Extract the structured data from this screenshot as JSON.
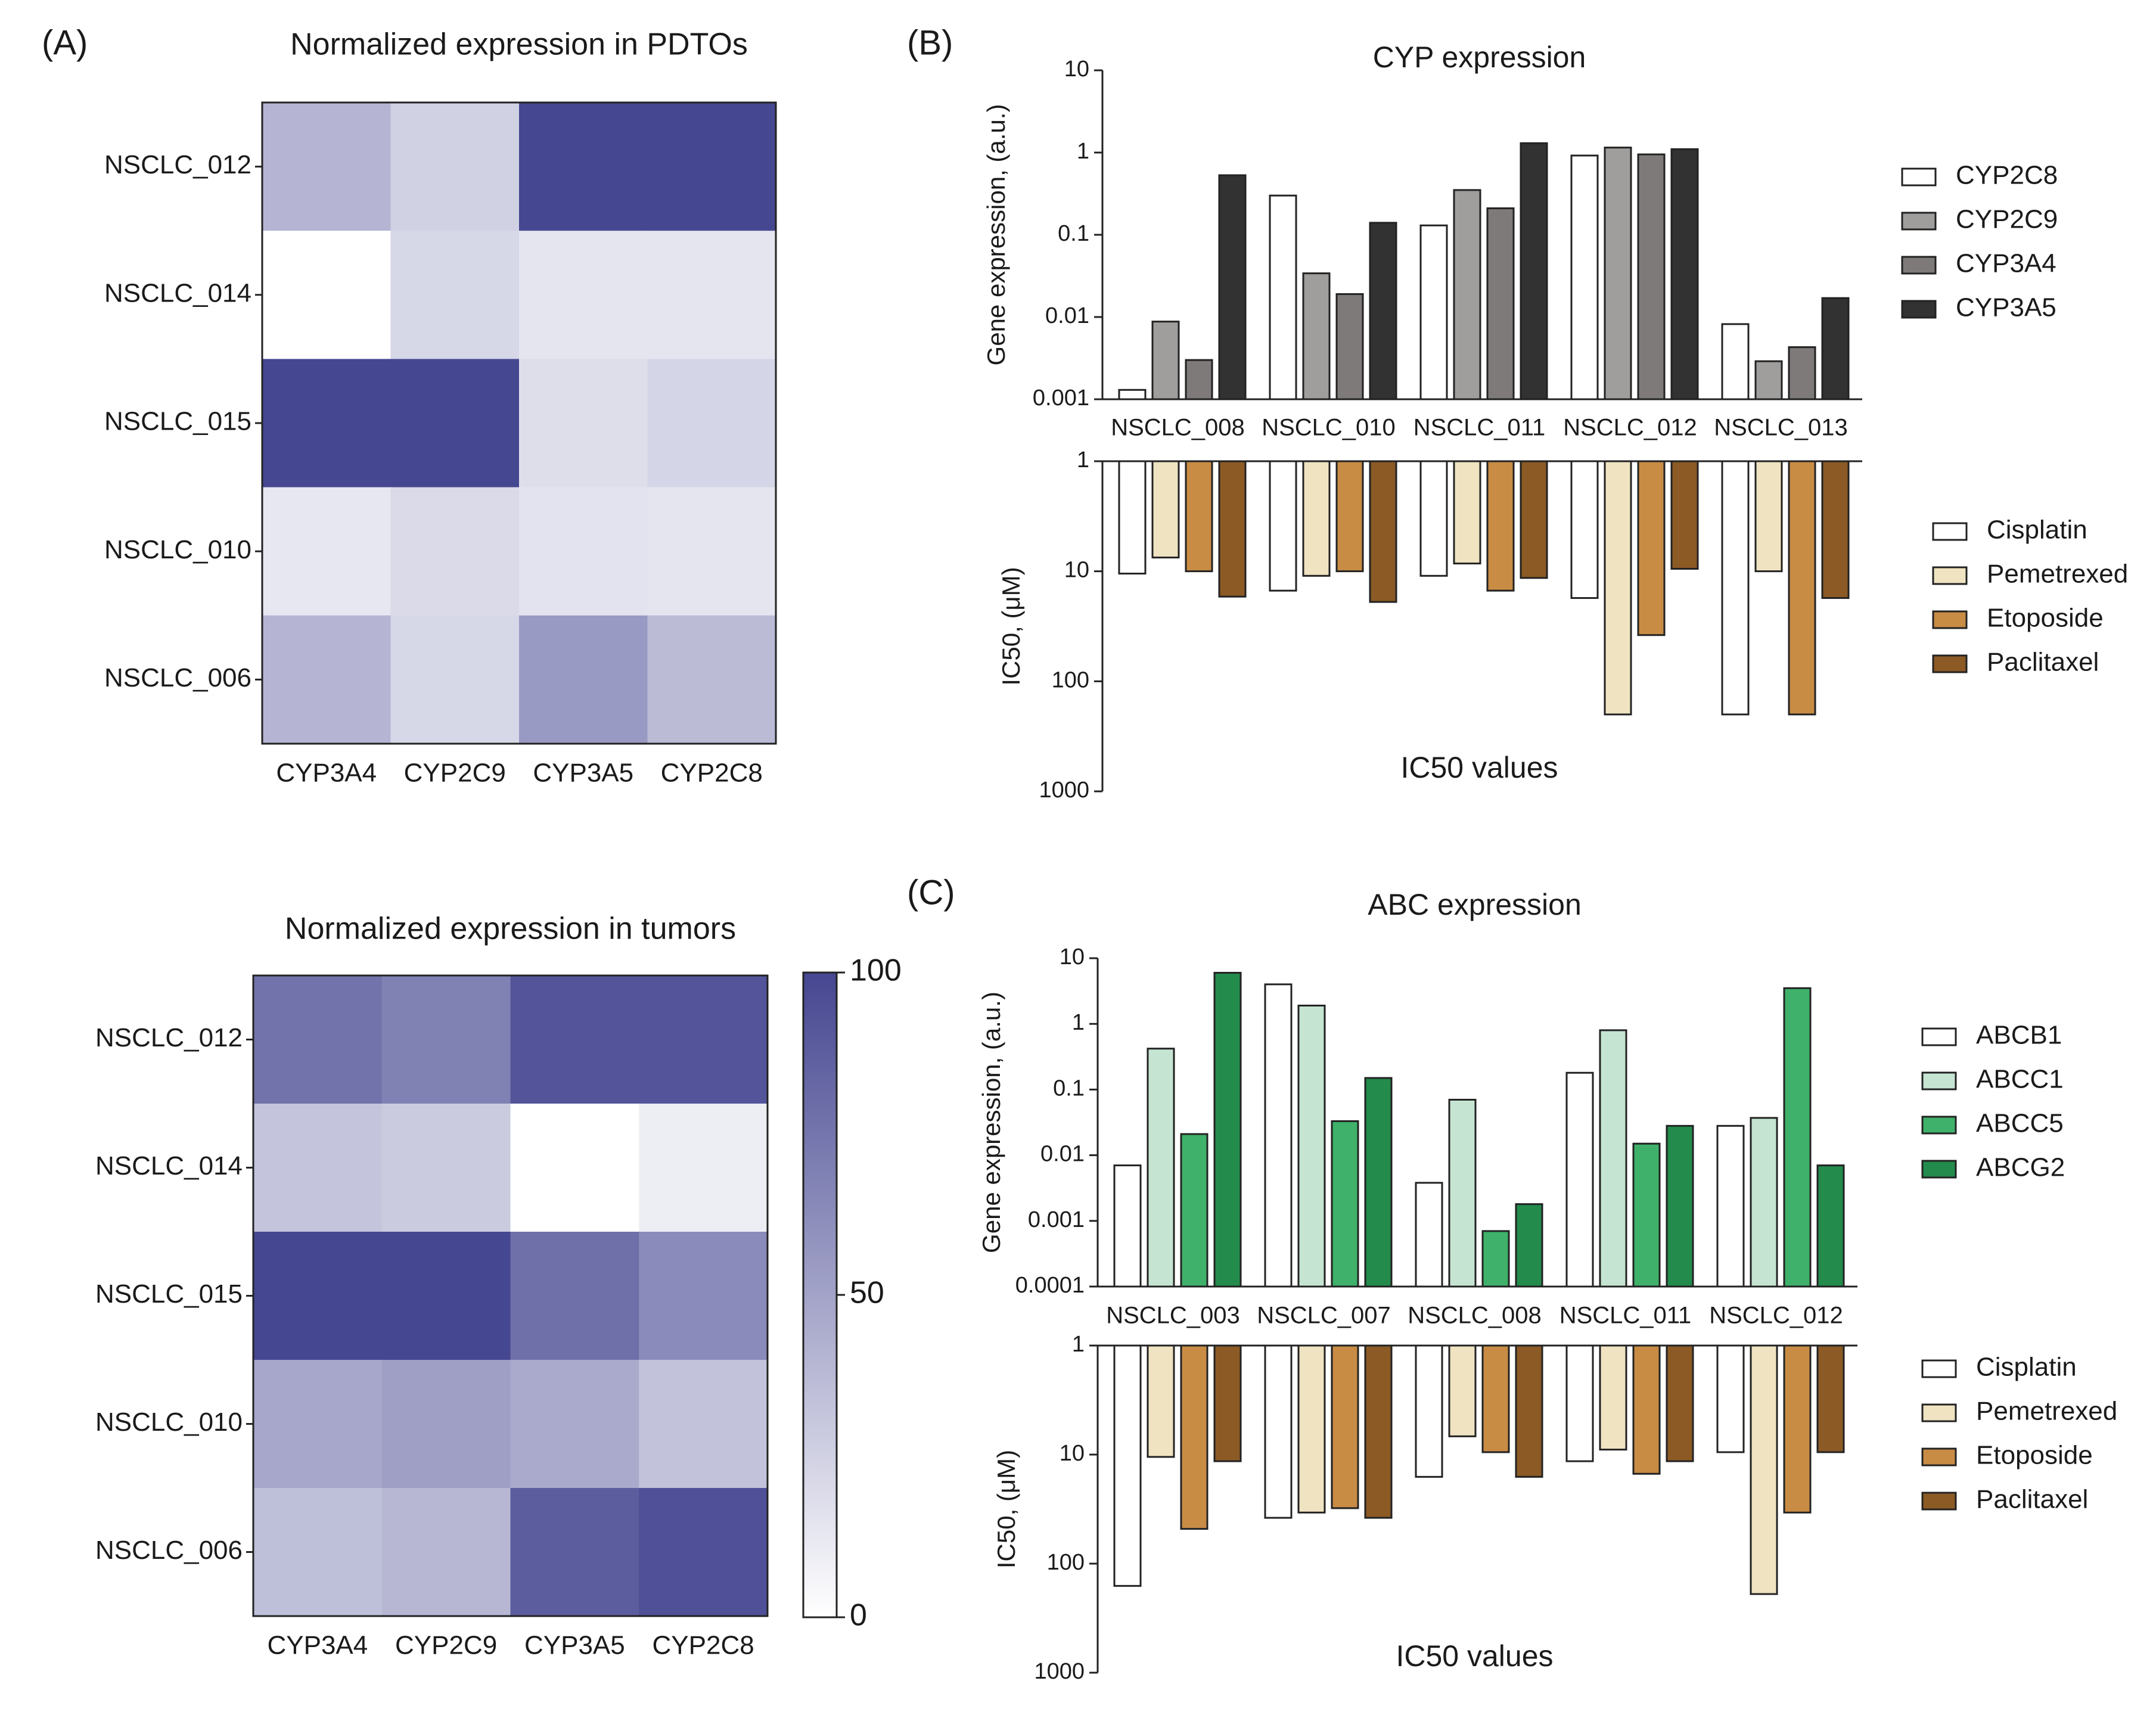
{
  "colors": {
    "heat_low": "#ffffff",
    "heat_high": "#464791",
    "CYP2C8": "#ffffff",
    "CYP2C9": "#a09e9d",
    "CYP3A4": "#7d7a79",
    "CYP3A5": "#323232",
    "Cisplatin": "#ffffff",
    "Pemetrexed": "#efe3c1",
    "Etoposide": "#c88c45",
    "Paclitaxel": "#8c5a25",
    "ABCB1": "#ffffff",
    "ABCC1": "#c5e5d2",
    "ABCC5": "#3fb16a",
    "ABCG2": "#238b4c"
  },
  "chart_data": [
    {
      "panel": "(A)",
      "type": "heatmap",
      "title": "Normalized expression in PDTOs",
      "rows": [
        "NSCLC_012",
        "NSCLC_014",
        "NSCLC_015",
        "NSCLC_010",
        "NSCLC_006"
      ],
      "columns": [
        "CYP3A4",
        "CYP2C9",
        "CYP3A5",
        "CYP2C8"
      ],
      "values": [
        [
          40,
          25,
          100,
          100
        ],
        [
          0,
          22,
          14,
          14
        ],
        [
          100,
          100,
          18,
          23
        ],
        [
          13,
          20,
          15,
          14
        ],
        [
          40,
          22,
          55,
          37
        ]
      ],
      "range": [
        0,
        100
      ]
    },
    {
      "panel": "",
      "type": "heatmap",
      "title": "Normalized expression in tumors",
      "rows": [
        "NSCLC_012",
        "NSCLC_014",
        "NSCLC_015",
        "NSCLC_010",
        "NSCLC_006"
      ],
      "columns": [
        "CYP3A4",
        "CYP2C9",
        "CYP3A5",
        "CYP2C8"
      ],
      "values": [
        [
          76,
          68,
          93,
          93
        ],
        [
          32,
          28,
          0,
          10
        ],
        [
          100,
          100,
          78,
          63
        ],
        [
          48,
          52,
          46,
          33
        ],
        [
          35,
          39,
          88,
          95
        ]
      ],
      "range": [
        0,
        100
      ],
      "colorbar_ticks": [
        "100",
        "50",
        "0"
      ]
    },
    {
      "panel": "(B)",
      "type": "bar",
      "title": "CYP expression",
      "ylabel": "Gene expression, (a.u.)",
      "yscale": "log",
      "ylim": [
        0.001,
        10
      ],
      "yticks": [
        "10",
        "1",
        "0.1",
        "0.01",
        "0.001"
      ],
      "categories": [
        "NSCLC_008",
        "NSCLC_010",
        "NSCLC_011",
        "NSCLC_012",
        "NSCLC_013"
      ],
      "series": [
        {
          "name": "CYP2C8",
          "values": [
            0.0013,
            0.3,
            0.13,
            0.92,
            0.0082
          ]
        },
        {
          "name": "CYP2C9",
          "values": [
            0.0088,
            0.034,
            0.35,
            1.15,
            0.0029
          ]
        },
        {
          "name": "CYP3A4",
          "values": [
            0.003,
            0.019,
            0.21,
            0.95,
            0.0043
          ]
        },
        {
          "name": "CYP3A5",
          "values": [
            0.53,
            0.14,
            1.3,
            1.1,
            0.017
          ]
        }
      ]
    },
    {
      "panel": "",
      "type": "bar",
      "title": "IC50 values",
      "ylabel": "IC50, (μM)",
      "yscale": "log",
      "inverted": true,
      "ylim": [
        1,
        1000
      ],
      "yticks": [
        "1",
        "10",
        "100",
        "1000"
      ],
      "categories": [
        "NSCLC_008",
        "NSCLC_010",
        "NSCLC_011",
        "NSCLC_012",
        "NSCLC_013"
      ],
      "series": [
        {
          "name": "Cisplatin",
          "values": [
            10.5,
            15,
            11,
            17.5,
            200
          ]
        },
        {
          "name": "Pemetrexed",
          "values": [
            7.5,
            11,
            8.5,
            200,
            10
          ]
        },
        {
          "name": "Etoposide",
          "values": [
            10,
            10,
            15,
            38,
            200
          ]
        },
        {
          "name": "Paclitaxel",
          "values": [
            17,
            19,
            11.5,
            9.5,
            17.5
          ]
        }
      ]
    },
    {
      "panel": "(C)",
      "type": "bar",
      "title": "ABC expression",
      "ylabel": "Gene expression, (a.u.)",
      "yscale": "log",
      "ylim": [
        0.0001,
        10
      ],
      "yticks": [
        "10",
        "1",
        "0.1",
        "0.01",
        "0.001",
        "0.0001"
      ],
      "categories": [
        "NSCLC_003",
        "NSCLC_007",
        "NSCLC_008",
        "NSCLC_011",
        "NSCLC_012"
      ],
      "series": [
        {
          "name": "ABCB1",
          "values": [
            0.007,
            4,
            0.0038,
            0.18,
            0.028
          ]
        },
        {
          "name": "ABCC1",
          "values": [
            0.42,
            1.9,
            0.07,
            0.8,
            0.037
          ]
        },
        {
          "name": "ABCC5",
          "values": [
            0.021,
            0.033,
            0.0007,
            0.015,
            3.5
          ]
        },
        {
          "name": "ABCG2",
          "values": [
            6,
            0.15,
            0.0018,
            0.028,
            0.007
          ]
        }
      ]
    },
    {
      "panel": "",
      "type": "bar",
      "title": "IC50 values",
      "ylabel": "IC50, (μM)",
      "yscale": "log",
      "inverted": true,
      "ylim": [
        1,
        1000
      ],
      "yticks": [
        "1",
        "10",
        "100",
        "1000"
      ],
      "categories": [
        "NSCLC_003",
        "NSCLC_007",
        "NSCLC_008",
        "NSCLC_011",
        "NSCLC_012"
      ],
      "series": [
        {
          "name": "Cisplatin",
          "values": [
            160,
            38,
            16,
            11.5,
            9.5
          ]
        },
        {
          "name": "Pemetrexed",
          "values": [
            10.5,
            34,
            6.8,
            9,
            190
          ]
        },
        {
          "name": "Etoposide",
          "values": [
            48,
            31,
            9.5,
            15,
            34
          ]
        },
        {
          "name": "Paclitaxel",
          "values": [
            11.5,
            38,
            16,
            11.5,
            9.5
          ]
        }
      ]
    }
  ]
}
